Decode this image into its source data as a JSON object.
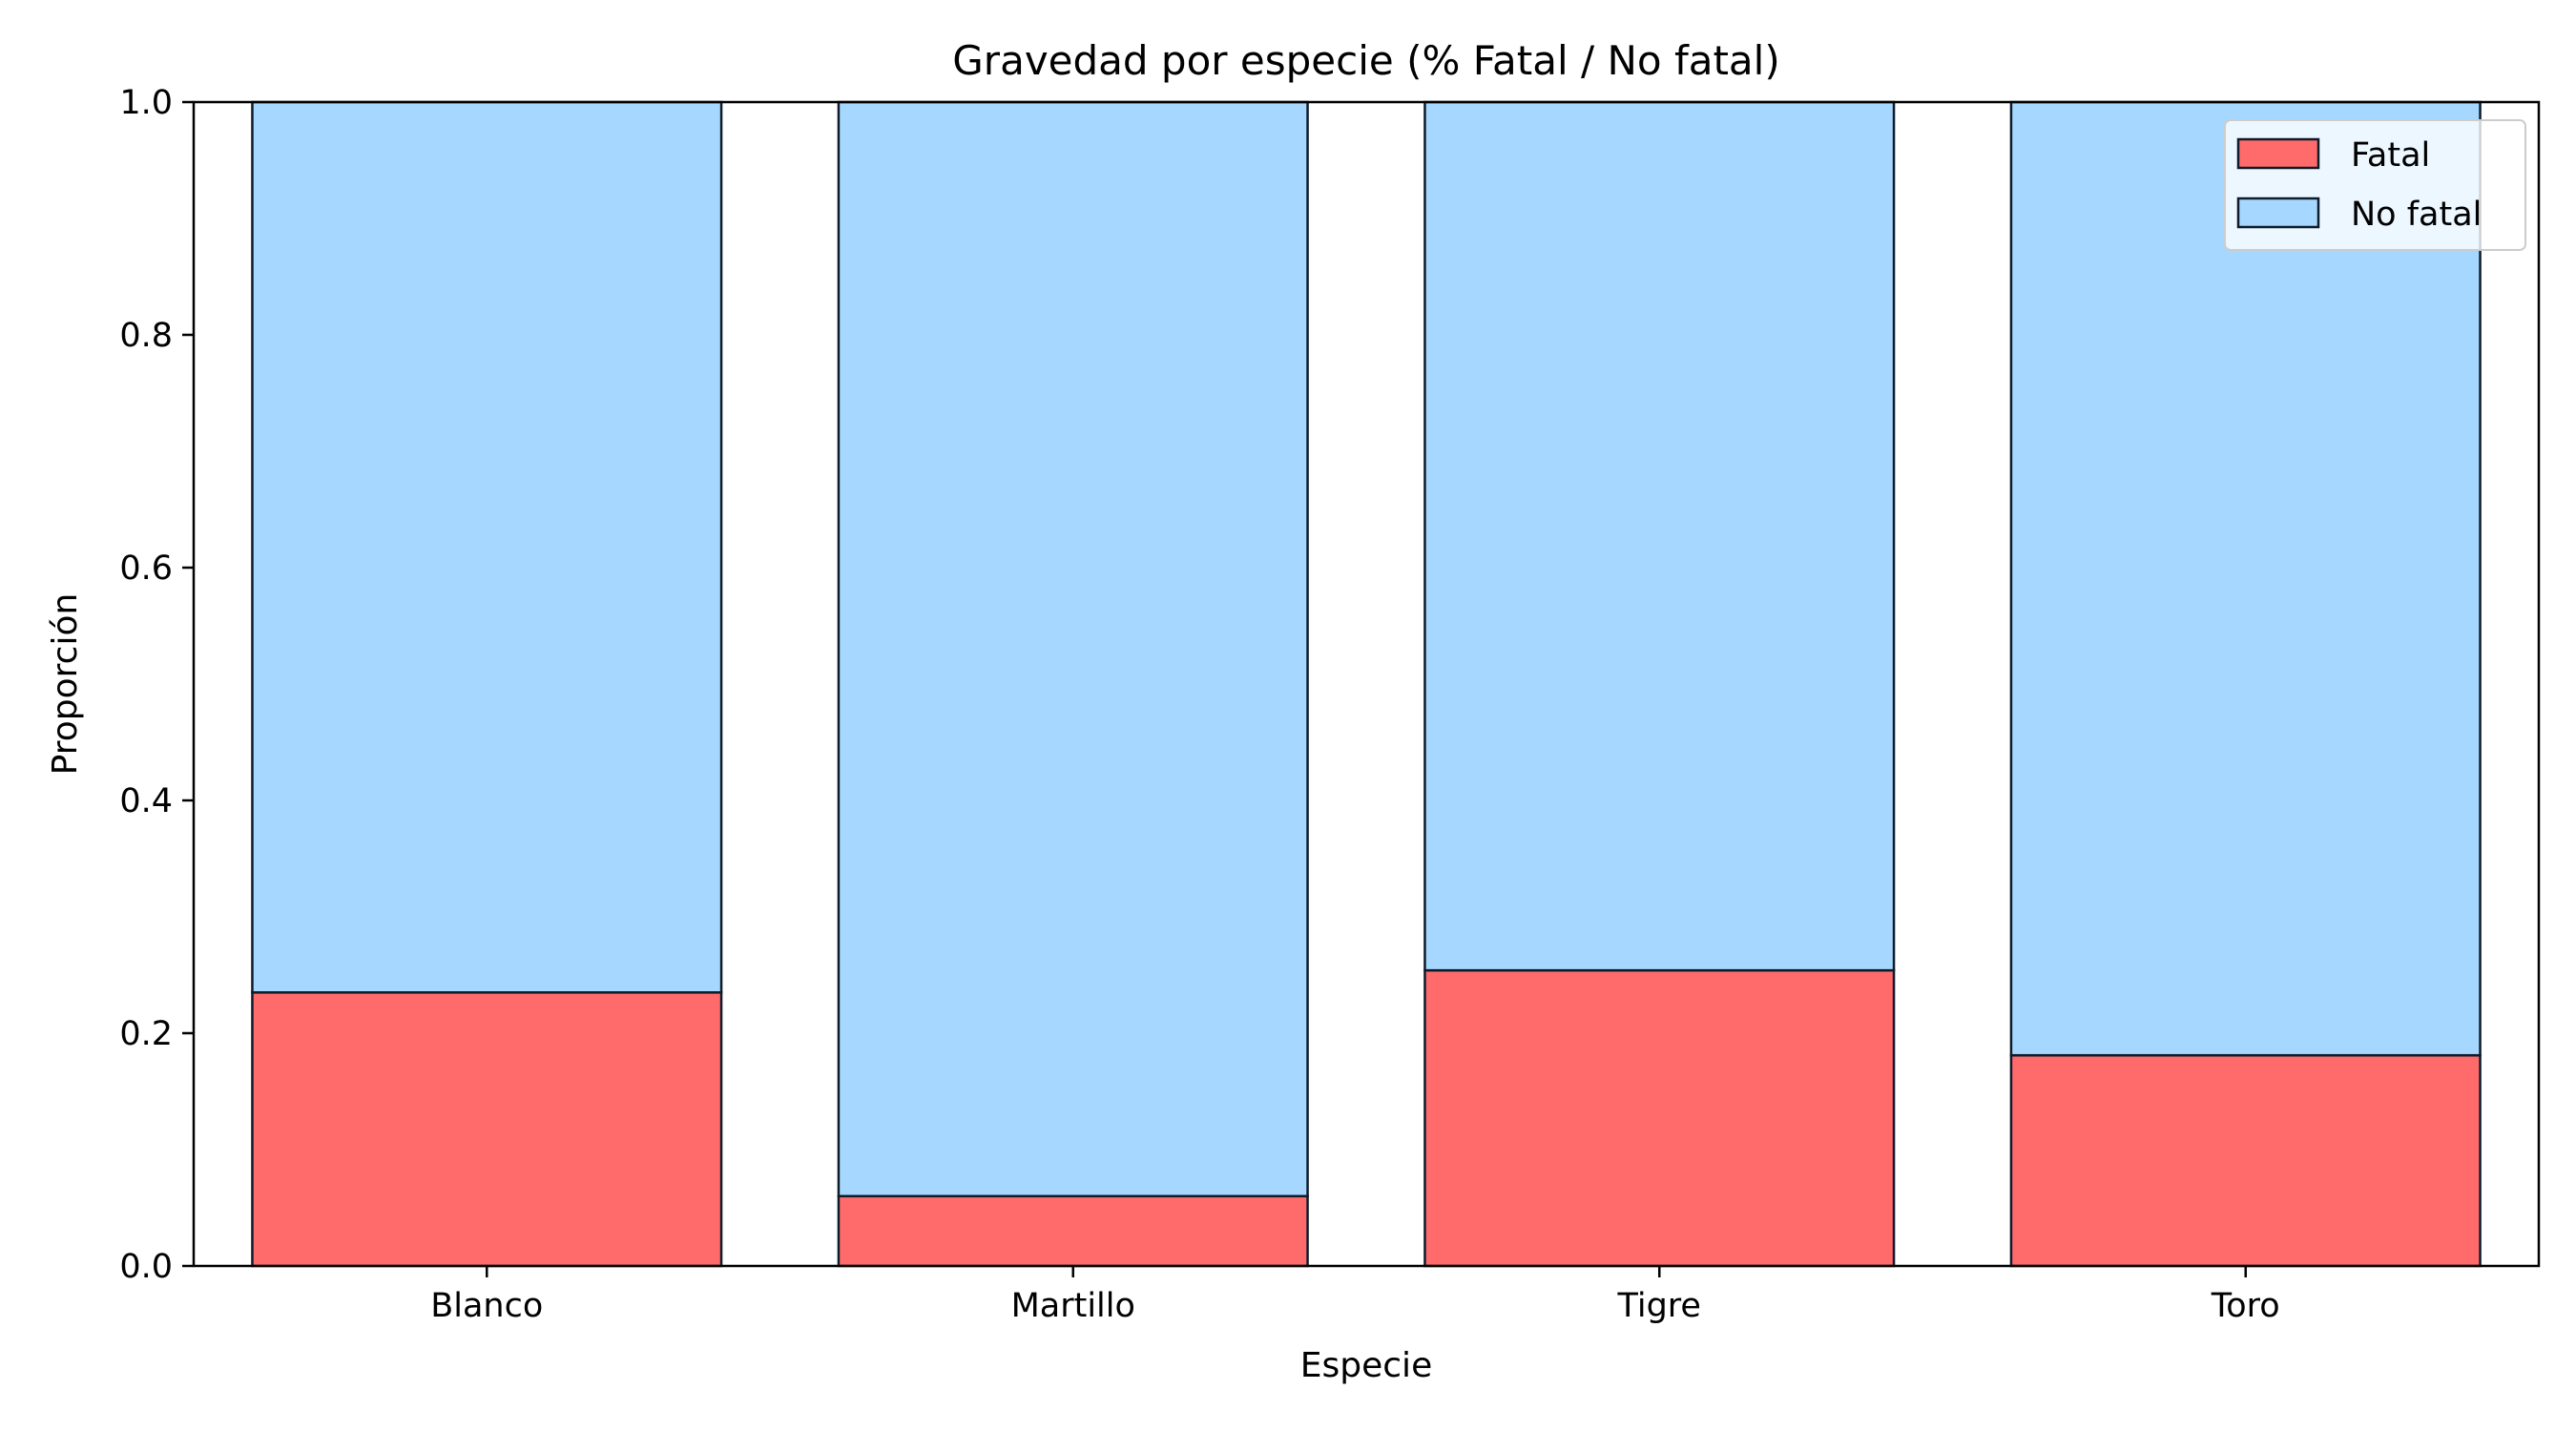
{
  "chart_data": {
    "type": "bar",
    "stacked": true,
    "title": "Gravedad por especie (% Fatal / No fatal)",
    "xlabel": "Especie",
    "ylabel": "Proporción",
    "categories": [
      "Blanco",
      "Martillo",
      "Tigre",
      "Toro"
    ],
    "series": [
      {
        "name": "Fatal",
        "values": [
          0.235,
          0.06,
          0.254,
          0.181
        ],
        "color": "#ff6b6b"
      },
      {
        "name": "No fatal",
        "values": [
          0.765,
          0.94,
          0.746,
          0.819
        ],
        "color": "#a6d8ff"
      }
    ],
    "ylim": [
      0.0,
      1.0
    ],
    "yticks": [
      "0.0",
      "0.2",
      "0.4",
      "0.6",
      "0.8",
      "1.0"
    ],
    "grid": false,
    "legend": "top-right",
    "edge_color": "#0d1b2a"
  }
}
